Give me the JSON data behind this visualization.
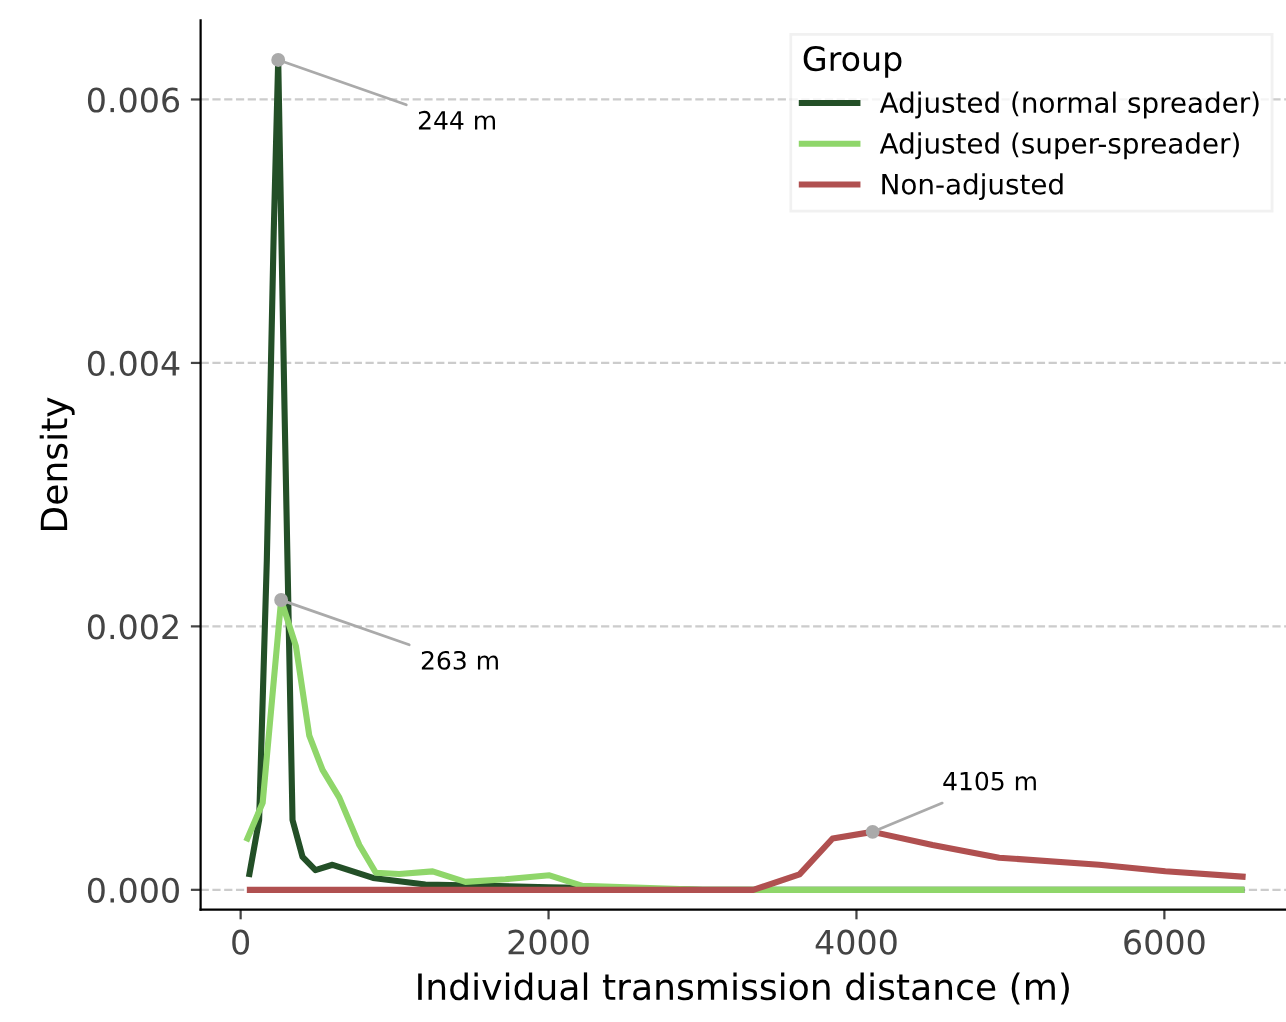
{
  "chart_data": {
    "type": "line",
    "xlabel": "Individual transmission distance (m)",
    "ylabel": "Density",
    "legend_title": "Group",
    "legend": "top right",
    "grid": "y",
    "line_style": "solid",
    "marker": "none",
    "xlim": [
      -260,
      6790
    ],
    "ylim": [
      -0.00015,
      0.0066
    ],
    "xticks": [
      0,
      2000,
      4000,
      6000
    ],
    "yticks": [
      {
        "value": 0,
        "label": "0.000"
      },
      {
        "value": 0.002,
        "label": "0.002"
      },
      {
        "value": 0.004,
        "label": "0.004"
      },
      {
        "value": 0.006,
        "label": "0.006"
      }
    ],
    "series": [
      {
        "name": "Adjusted (normal spreader)",
        "color": "#234f27",
        "x": [
          57,
          120,
          170,
          215,
          244,
          285,
          337,
          402,
          486,
          597,
          860,
          1200,
          1600,
          2000,
          3000,
          4000,
          5000,
          6500
        ],
        "values": [
          0.00012,
          0.00053,
          0.0025,
          0.005,
          0.0063,
          0.00365,
          0.00053,
          0.00025,
          0.00015,
          0.00019,
          9e-05,
          4e-05,
          3e-05,
          2e-05,
          0,
          0,
          0,
          0
        ]
      },
      {
        "name": "Adjusted (super-spreader)",
        "color": "#8fd66a",
        "x": [
          44,
          143,
          263,
          359,
          446,
          532,
          641,
          771,
          878,
          1030,
          1247,
          1460,
          1720,
          2006,
          2220,
          3000,
          4000,
          5000,
          6500
        ],
        "values": [
          0.00039,
          0.00066,
          0.0022,
          0.00185,
          0.00117,
          0.00091,
          0.0007,
          0.00034,
          0.00013,
          0.00012,
          0.00014,
          6e-05,
          8e-05,
          0.00011,
          3e-05,
          0,
          0,
          0,
          0
        ]
      },
      {
        "name": "Non-adjusted",
        "color": "#b05050",
        "x": [
          60,
          1000,
          2000,
          3000,
          3330,
          3630,
          3845,
          4105,
          4494,
          4927,
          5576,
          6006,
          6508
        ],
        "values": [
          0,
          0,
          0,
          0,
          0,
          0.000117,
          0.00039,
          0.00044,
          0.00034,
          0.000244,
          0.00019,
          0.000141,
          0.0001
        ]
      }
    ],
    "annotations": [
      {
        "text": "244 m",
        "x": 244,
        "y": 0.0063
      },
      {
        "text": "263 m",
        "x": 263,
        "y": 0.0022
      },
      {
        "text": "4105 m",
        "x": 4105,
        "y": 0.00044
      }
    ]
  }
}
